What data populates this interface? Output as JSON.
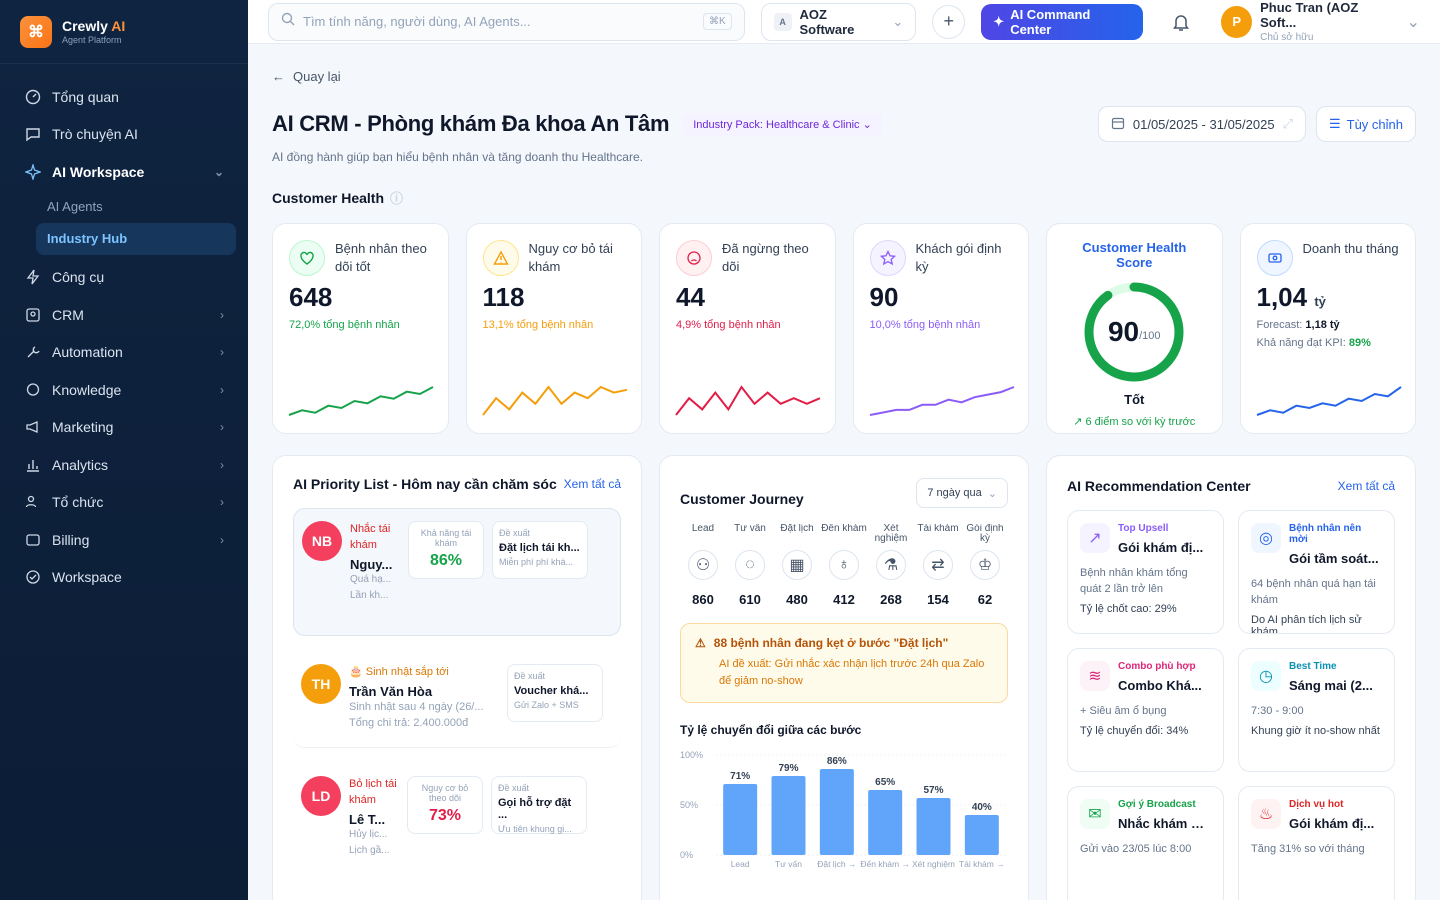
{
  "brand": {
    "name": "Crewly",
    "name_accent": "AI",
    "sub": "Agent Platform"
  },
  "sidebar": {
    "items": [
      {
        "label": "Tổng quan"
      },
      {
        "label": "Trò chuyện AI"
      },
      {
        "label": "AI Workspace"
      },
      {
        "label": "Công cụ"
      },
      {
        "label": "CRM"
      },
      {
        "label": "Automation"
      },
      {
        "label": "Knowledge"
      },
      {
        "label": "Marketing"
      },
      {
        "label": "Analytics"
      },
      {
        "label": "Tổ chức"
      },
      {
        "label": "Billing"
      },
      {
        "label": "Workspace"
      }
    ],
    "sub_items": [
      {
        "label": "AI Agents"
      },
      {
        "label": "Industry Hub"
      }
    ]
  },
  "topbar": {
    "search_placeholder": "Tìm tính năng, người dùng, AI Agents...",
    "shortcut": "⌘K",
    "org_initial": "A",
    "org_name": "AOZ Software",
    "command_label": "AI Command Center",
    "user_initial": "P",
    "user_name": "Phuc Tran (AOZ Soft...",
    "user_role": "Chủ sở hữu"
  },
  "page": {
    "back_label": "Quay lại",
    "title": "AI CRM - Phòng khám Đa khoa An Tâm",
    "pack_label": "Industry Pack: Healthcare & Clinic",
    "date_range": "01/05/2025 - 31/05/2025",
    "custom_label": "Tùy chỉnh",
    "subtitle": "AI đồng hành giúp bạn hiểu bệnh nhân và tăng doanh thu Healthcare.",
    "section_title": "Customer Health"
  },
  "kpis": [
    {
      "label": "Bệnh nhân theo dõi tốt",
      "value": "648",
      "sub": "72,0% tổng bệnh nhân",
      "color": "#16a34a",
      "trend": [
        3,
        4,
        3.5,
        5,
        4.5,
        6,
        5.5,
        7,
        6.5,
        8,
        7.5,
        9
      ]
    },
    {
      "label": "Nguy cơ bỏ tái khám",
      "value": "118",
      "sub": "13,1% tổng bệnh nhân",
      "color": "#f59e0b",
      "trend": [
        3,
        6,
        4,
        7,
        5,
        8,
        5,
        7,
        6,
        8,
        7,
        7.5
      ]
    },
    {
      "label": "Đã ngừng theo dõi",
      "value": "44",
      "sub": "4,9% tổng bệnh nhân",
      "color": "#e11d48",
      "trend": [
        3,
        6,
        4,
        7,
        4,
        8,
        5,
        7,
        5,
        6,
        5,
        6
      ]
    },
    {
      "label": "Khách gói định kỳ",
      "value": "90",
      "sub": "10,0% tổng bệnh nhân",
      "color": "#8b5cf6",
      "trend": [
        3,
        3.5,
        4,
        4,
        5,
        5,
        6,
        5.5,
        6.5,
        7,
        7.5,
        8.5
      ]
    }
  ],
  "health_score": {
    "title": "Customer Health Score",
    "value": "90",
    "max": "/100",
    "fraction": 0.9,
    "status": "Tốt",
    "delta": "6 điểm so với kỳ trước"
  },
  "revenue": {
    "label": "Doanh thu tháng",
    "value": "1,04",
    "unit": "tỷ",
    "forecast_label": "Forecast:",
    "forecast_value": "1,18 tỷ",
    "kpi_label": "Khả năng đạt KPI:",
    "kpi_value": "89%",
    "trend": [
      3,
      4,
      3.5,
      5,
      4.5,
      5.5,
      5,
      6.5,
      6,
      7.5,
      7,
      9
    ]
  },
  "priority": {
    "title": "AI Priority List - Hôm nay cần chăm sóc",
    "link": "Xem tất cả",
    "items": [
      {
        "initials": "NB",
        "tag": "Nhắc tái khám",
        "name": "Nguy...",
        "desc1": "Quá hạ...",
        "desc2": "Lần kh...",
        "metric_label": "Khả năng tái khám",
        "metric": "86%",
        "action_label": "Đề xuất",
        "action": "Đặt lịch tái kh...",
        "action_sub": "Miễn phí phí khá..."
      },
      {
        "initials": "TH",
        "tag": "Sinh nhật sắp tới",
        "name": "Trần Văn Hòa",
        "desc1": "Sinh nhật sau 4 ngày (26/...",
        "desc2": "Tổng chi trả: 2.400.000đ",
        "action_label": "Đề xuất",
        "action": "Voucher khá...",
        "action_sub": "Gửi Zalo + SMS"
      },
      {
        "initials": "LD",
        "tag": "Bỏ lịch tái khám",
        "name": "Lê T...",
        "desc1": "Hủy lịc...",
        "desc2": "Lịch gầ...",
        "metric_label": "Nguy cơ bỏ theo dõi",
        "metric": "73%",
        "action_label": "Đề xuất",
        "action": "Gọi hỗ trợ đặt ...",
        "action_sub": "Ưu tiên khung gi..."
      }
    ]
  },
  "journey": {
    "title": "Customer Journey",
    "period": "7 ngày qua",
    "steps": [
      {
        "label": "Lead",
        "value": "860"
      },
      {
        "label": "Tư vấn",
        "value": "610"
      },
      {
        "label": "Đặt lịch",
        "value": "480"
      },
      {
        "label": "Đến khám",
        "value": "412"
      },
      {
        "label": "Xét nghiệm",
        "value": "268"
      },
      {
        "label": "Tái khám",
        "value": "154"
      },
      {
        "label": "Gói định kỳ",
        "value": "62"
      }
    ],
    "alert_title": "88 bệnh nhân đang kẹt ở bước \"Đặt lịch\"",
    "alert_desc": "AI đề xuất: Gửi nhắc xác nhận lịch trước 24h qua Zalo để giảm no-show",
    "conversion_title": "Tỷ lệ chuyển đổi giữa các bước"
  },
  "chart_data": {
    "type": "bar",
    "categories": [
      "Lead → Tư vấn",
      "Tư vấn → Đặt lịch",
      "Đặt lịch → Đến khám",
      "Đến khám → Xét nghiệm",
      "Xét nghiệm → Tái khám",
      "Tái khám → Gói định kỳ"
    ],
    "tick_labels": [
      "Lead",
      "Tư vấn",
      "Đặt lịch →",
      "Đến khám →",
      "Xét nghiệm",
      "Tái khám →"
    ],
    "values": [
      71,
      79,
      86,
      65,
      57,
      40
    ],
    "value_labels": [
      "71%",
      "79%",
      "86%",
      "65%",
      "57%",
      "40%"
    ],
    "y_ticks": [
      "100%",
      "50%",
      "0%"
    ],
    "ylim": [
      0,
      100
    ],
    "bar_color": "#60a5fa"
  },
  "recommendations": {
    "title": "AI Recommendation Center",
    "link": "Xem tất cả",
    "items": [
      {
        "tag": "Top Upsell",
        "name": "Gói khám đị...",
        "desc": "Bệnh nhân khám tổng quát 2 lần trở lên",
        "metric": "Tỷ lệ chốt cao: 29%",
        "color": "#8b5cf6"
      },
      {
        "tag": "Bệnh nhân nên mời",
        "name": "Gói tầm soát...",
        "desc": "64 bệnh nhân quá hạn tái khám",
        "metric": "Do AI phân tích lịch sử khám",
        "color": "#2563eb"
      },
      {
        "tag": "Combo phù hợp",
        "name": "Combo Khá...",
        "desc": "+ Siêu âm ổ bụng",
        "metric": "Tỷ lệ chuyển đổi: 34%",
        "color": "#db2777"
      },
      {
        "tag": "Best Time",
        "name": "Sáng mai (2...",
        "desc": "7:30 - 9:00",
        "metric": "Khung giờ ít no-show nhất",
        "color": "#0891b2"
      },
      {
        "tag": "Gợi ý Broadcast",
        "name": "Nhắc khám s...",
        "desc": "Gửi vào 23/05 lúc 8:00",
        "metric": "",
        "color": "#16a34a"
      },
      {
        "tag": "Dịch vụ hot",
        "name": "Gói khám đị...",
        "desc": "Tăng 31% so với tháng",
        "metric": "",
        "color": "#dc2626"
      }
    ]
  }
}
